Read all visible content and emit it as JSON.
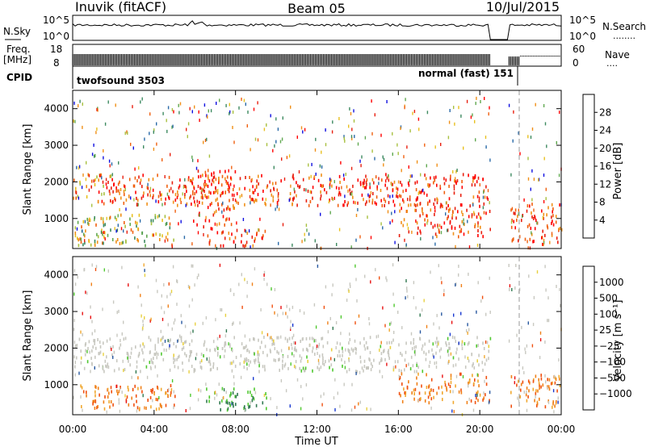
{
  "header": {
    "station": "Inuvik (fitACF)",
    "beam": "Beam 05",
    "date": "10/Jul/2015"
  },
  "summary_panels": {
    "nsky": {
      "label": "N.Sky",
      "ticks": [
        "10^5",
        "10^0"
      ],
      "right_label": "N.Search",
      "right_ticks": [
        "10^5",
        "10^0"
      ],
      "right_dots": "........"
    },
    "freq": {
      "label_lines": [
        "Freq.",
        "[MHz]"
      ],
      "ticks": [
        "18",
        "8"
      ],
      "right_label": "Nave",
      "right_ticks": [
        "60",
        "0"
      ],
      "right_dots": "...."
    },
    "cpid": {
      "label": "CPID",
      "segments": [
        "twofsound 3503",
        "normal (fast) 151"
      ]
    }
  },
  "time_axis": {
    "label": "Time UT",
    "ticks": [
      "00:00",
      "04:00",
      "08:00",
      "12:00",
      "16:00",
      "20:00",
      "00:00"
    ]
  },
  "range_axis": {
    "label": "Slant Range [km]",
    "ticks": [
      "1000",
      "2000",
      "3000",
      "4000"
    ]
  },
  "chart_data": [
    {
      "type": "heatmap",
      "title": "",
      "xlabel": "Time UT",
      "ylabel": "Slant Range [km]",
      "xlim": [
        0,
        24
      ],
      "ylim": [
        180,
        4500
      ],
      "colorbar": {
        "label": "Power [dB]",
        "ticks": [
          "4",
          "8",
          "12",
          "16",
          "20",
          "24",
          "28"
        ],
        "range": [
          0,
          30
        ],
        "colors": [
          "#1010e0",
          "#2a6aa8",
          "#3e8a60",
          "#60a850",
          "#a8c040",
          "#e8c020",
          "#f09018",
          "#f06010",
          "#e82010",
          "#ff0000"
        ]
      },
      "echo_bands": [
        {
          "t0": 0.0,
          "t1": 1.6,
          "r0": 1550,
          "r1": 2200,
          "level": "medium-high"
        },
        {
          "t0": 1.2,
          "t1": 20.5,
          "r0": 1350,
          "r1": 2200,
          "level": "high"
        },
        {
          "t0": 5.8,
          "t1": 8.0,
          "r0": 700,
          "r1": 2300,
          "level": "high",
          "note": "descending streak"
        },
        {
          "t0": 6.5,
          "t1": 9.5,
          "r0": 250,
          "r1": 700,
          "level": "high"
        },
        {
          "t0": 0.0,
          "t1": 5.0,
          "r0": 250,
          "r1": 1100,
          "level": "medium"
        },
        {
          "t0": 16.0,
          "t1": 20.5,
          "r0": 500,
          "r1": 1400,
          "level": "high"
        },
        {
          "t0": 21.5,
          "t1": 24.0,
          "r0": 350,
          "r1": 1400,
          "level": "high"
        }
      ],
      "data_gap": [
        20.5,
        21.4
      ]
    },
    {
      "type": "heatmap",
      "title": "",
      "xlabel": "Time UT",
      "ylabel": "Slant Range [km]",
      "xlim": [
        0,
        24
      ],
      "ylim": [
        180,
        4500
      ],
      "colorbar": {
        "label": "Velocity [m s⁻¹]",
        "ticks": [
          "1000",
          "500",
          "100",
          "25",
          "−25",
          "−100",
          "−500",
          "−1000"
        ],
        "range": [
          -1000,
          1000
        ],
        "colors": [
          "#e81010",
          "#f05010",
          "#f08018",
          "#f0a830",
          "#e8d040",
          "#c8c8c0",
          "#50c830",
          "#307850",
          "#2858a0",
          "#1838d0"
        ]
      },
      "echo_bands": [
        {
          "t0": 0.0,
          "t1": 20.5,
          "r0": 1350,
          "r1": 2300,
          "velocity": "ground-scatter (~0)"
        },
        {
          "t0": 0.0,
          "t1": 5.0,
          "r0": 300,
          "r1": 1000,
          "velocity": "−100 to −500"
        },
        {
          "t0": 6.5,
          "t1": 9.5,
          "r0": 300,
          "r1": 900,
          "velocity": "100 to 500"
        },
        {
          "t0": 16.0,
          "t1": 20.5,
          "r0": 500,
          "r1": 1300,
          "velocity": "−100 to −500"
        },
        {
          "t0": 21.5,
          "t1": 24.0,
          "r0": 350,
          "r1": 1300,
          "velocity": "−100 to −500"
        }
      ],
      "data_gap": [
        20.5,
        21.4
      ]
    }
  ]
}
